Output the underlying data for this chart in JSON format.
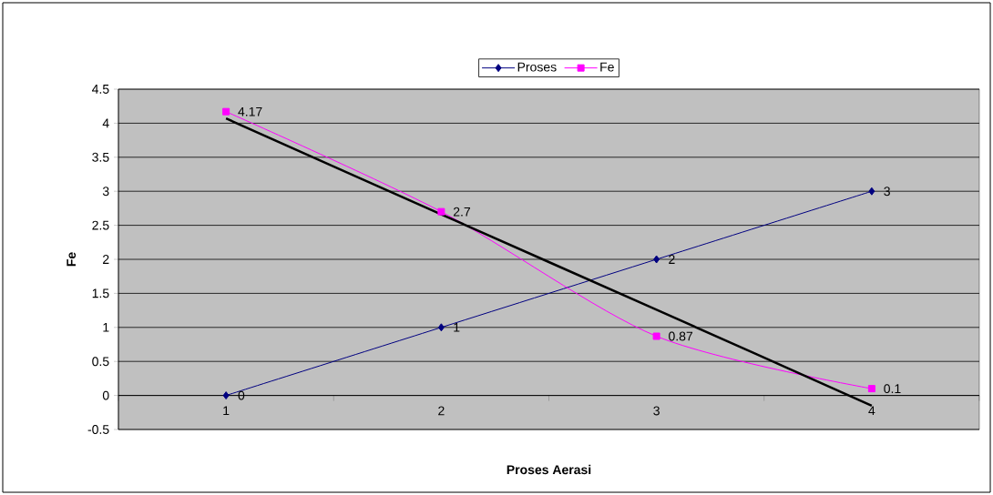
{
  "chart_data": {
    "type": "line",
    "xlabel": "Proses Aerasi",
    "ylabel": "Fe",
    "categories": [
      "1",
      "2",
      "3",
      "4"
    ],
    "ylim": [
      -0.5,
      4.5
    ],
    "yticks": [
      -0.5,
      0,
      0.5,
      1,
      1.5,
      2,
      2.5,
      3,
      3.5,
      4,
      4.5
    ],
    "grid": "y",
    "legend": "top",
    "series": [
      {
        "name": "Proses",
        "color": "#000080",
        "marker": "diamond",
        "values": [
          0,
          1,
          2,
          3
        ],
        "value_labels": [
          "0",
          "1",
          "2",
          "3"
        ]
      },
      {
        "name": "Fe",
        "color": "#ff00ff",
        "marker": "square",
        "values": [
          4.17,
          2.7,
          0.87,
          0.1
        ],
        "value_labels": [
          "4.17",
          "2.7",
          "0.87",
          "0.1"
        ]
      },
      {
        "color": "#000000",
        "marker": "none",
        "values": [
          4.07,
          2.66,
          1.26,
          -0.15
        ]
      }
    ]
  }
}
